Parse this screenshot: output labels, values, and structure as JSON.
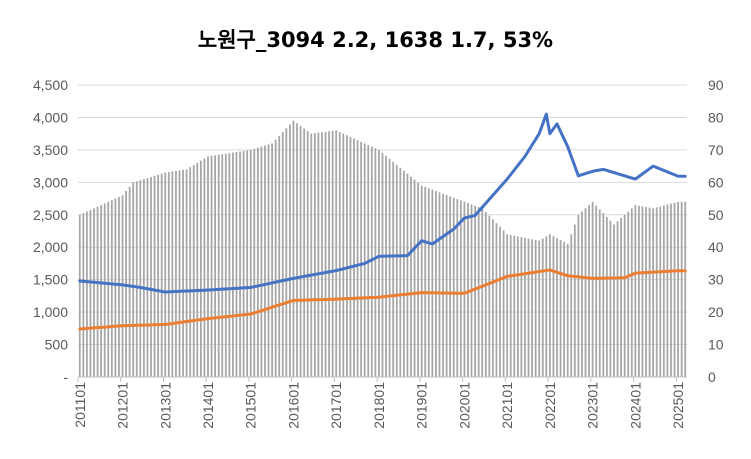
{
  "chart_data": {
    "type": "bar+line",
    "title": "노원구_3094 2.2, 1638 1.7, 53%",
    "x_tick_labels": [
      "201101",
      "201201",
      "201301",
      "201401",
      "201501",
      "201601",
      "201701",
      "201801",
      "201901",
      "202001",
      "202101",
      "202201",
      "202301",
      "202401",
      "202501"
    ],
    "left_axis": {
      "ylim": [
        0,
        4500
      ],
      "tick_labels": [
        "-",
        "500",
        "1,000",
        "1,500",
        "2,000",
        "2,500",
        "3,000",
        "3,500",
        "4,000",
        "4,500"
      ]
    },
    "right_axis": {
      "ylim": [
        0,
        90
      ],
      "tick_labels": [
        "0",
        "10",
        "20",
        "30",
        "40",
        "50",
        "60",
        "70",
        "80",
        "90"
      ]
    },
    "grid": true,
    "legend": "none",
    "series": [
      {
        "kind": "bar",
        "axis": "right",
        "color": "#a6a6a6",
        "keyframes": [
          [
            "201101",
            50
          ],
          [
            "201201",
            56
          ],
          [
            "201204",
            60
          ],
          [
            "201301",
            63
          ],
          [
            "201307",
            64
          ],
          [
            "201401",
            68
          ],
          [
            "201501",
            70
          ],
          [
            "201507",
            72
          ],
          [
            "201601",
            79
          ],
          [
            "201606",
            75
          ],
          [
            "201701",
            76
          ],
          [
            "201801",
            70
          ],
          [
            "201901",
            59
          ],
          [
            "202001",
            54
          ],
          [
            "202006",
            52
          ],
          [
            "202101",
            44
          ],
          [
            "202110",
            42
          ],
          [
            "202201",
            44
          ],
          [
            "202206",
            41
          ],
          [
            "202209",
            50
          ],
          [
            "202301",
            54
          ],
          [
            "202307",
            47
          ],
          [
            "202401",
            53
          ],
          [
            "202406",
            52
          ],
          [
            "202501",
            54
          ]
        ]
      },
      {
        "kind": "line",
        "axis": "left",
        "color": "#4472c4",
        "keyframes": [
          [
            "201101",
            1480
          ],
          [
            "201201",
            1420
          ],
          [
            "201206",
            1380
          ],
          [
            "201301",
            1310
          ],
          [
            "201401",
            1340
          ],
          [
            "201501",
            1380
          ],
          [
            "201601",
            1520
          ],
          [
            "201701",
            1640
          ],
          [
            "201709",
            1750
          ],
          [
            "201801",
            1860
          ],
          [
            "201809",
            1870
          ],
          [
            "201901",
            2100
          ],
          [
            "201904",
            2050
          ],
          [
            "201910",
            2280
          ],
          [
            "202001",
            2450
          ],
          [
            "202004",
            2490
          ],
          [
            "202101",
            3050
          ],
          [
            "202106",
            3400
          ],
          [
            "202110",
            3750
          ],
          [
            "202112",
            4050
          ],
          [
            "202201",
            3750
          ],
          [
            "202203",
            3900
          ],
          [
            "202206",
            3550
          ],
          [
            "202209",
            3100
          ],
          [
            "202301",
            3170
          ],
          [
            "202304",
            3200
          ],
          [
            "202310",
            3100
          ],
          [
            "202401",
            3050
          ],
          [
            "202406",
            3250
          ],
          [
            "202501",
            3094
          ]
        ]
      },
      {
        "kind": "line",
        "axis": "left",
        "color": "#ed7d31",
        "keyframes": [
          [
            "201101",
            740
          ],
          [
            "201201",
            790
          ],
          [
            "201301",
            810
          ],
          [
            "201401",
            900
          ],
          [
            "201501",
            970
          ],
          [
            "201601",
            1180
          ],
          [
            "201701",
            1200
          ],
          [
            "201801",
            1230
          ],
          [
            "201901",
            1300
          ],
          [
            "202001",
            1290
          ],
          [
            "202101",
            1550
          ],
          [
            "202201",
            1650
          ],
          [
            "202206",
            1560
          ],
          [
            "202301",
            1520
          ],
          [
            "202310",
            1530
          ],
          [
            "202401",
            1600
          ],
          [
            "202501",
            1638
          ]
        ]
      }
    ]
  }
}
